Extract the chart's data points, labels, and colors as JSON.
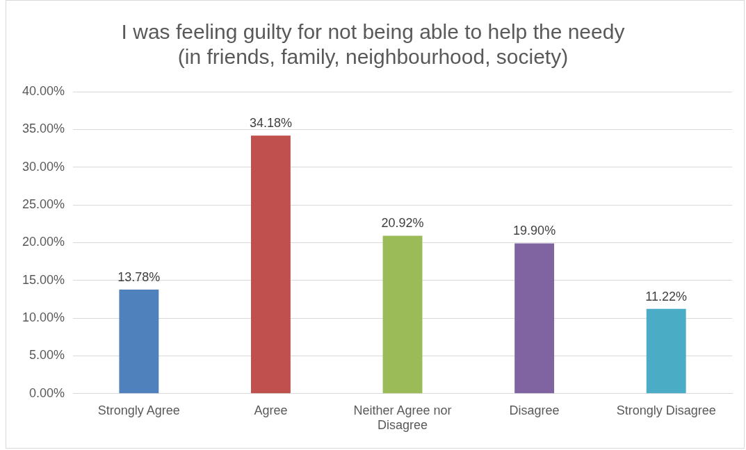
{
  "chart_data": {
    "type": "bar",
    "title": "I was feeling guilty for not being able to help the needy\n(in friends, family, neighbourhood, society)",
    "categories": [
      "Strongly Agree",
      "Agree",
      "Neither Agree nor Disagree",
      "Disagree",
      "Strongly Disagree"
    ],
    "values": [
      13.78,
      34.18,
      20.92,
      19.9,
      11.22
    ],
    "colors": [
      "#4f81bd",
      "#c0504d",
      "#9bbb59",
      "#8064a2",
      "#4bacc6"
    ],
    "value_labels": [
      "13.78%",
      "34.18%",
      "20.92%",
      "19.90%",
      "11.22%"
    ],
    "ylim": [
      0,
      40
    ],
    "yticks": [
      {
        "value": 0,
        "label": "0.00%"
      },
      {
        "value": 5,
        "label": "5.00%"
      },
      {
        "value": 10,
        "label": "10.00%"
      },
      {
        "value": 15,
        "label": "15.00%"
      },
      {
        "value": 20,
        "label": "20.00%"
      },
      {
        "value": 25,
        "label": "25.00%"
      },
      {
        "value": 30,
        "label": "30.00%"
      },
      {
        "value": 35,
        "label": "35.00%"
      },
      {
        "value": 40,
        "label": "40.00%"
      }
    ],
    "grid": "y",
    "legend": false
  }
}
